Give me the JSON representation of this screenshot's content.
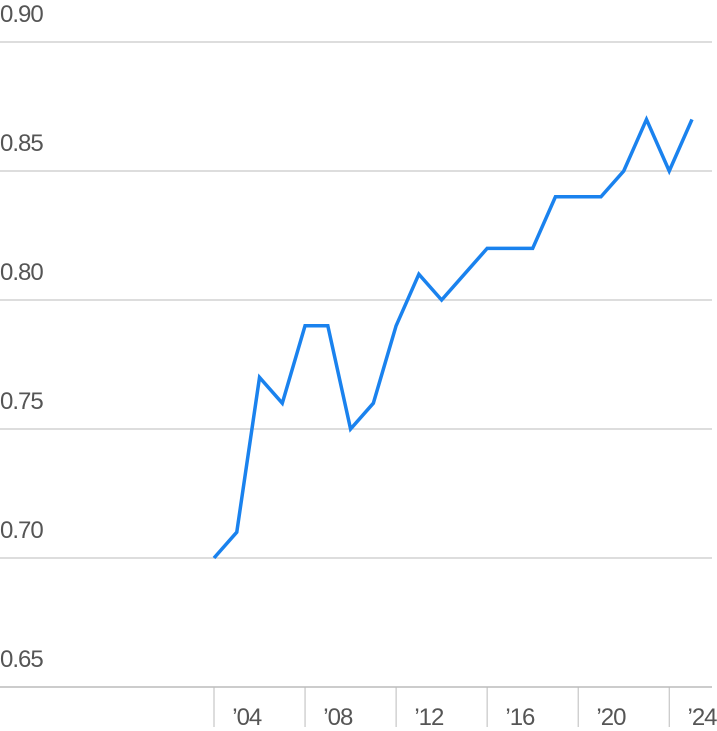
{
  "chart_data": {
    "type": "line",
    "x": [
      2003,
      2004,
      2005,
      2006,
      2007,
      2008,
      2009,
      2010,
      2011,
      2012,
      2013,
      2014,
      2015,
      2016,
      2017,
      2018,
      2019,
      2020,
      2021,
      2022,
      2023,
      2024
    ],
    "series": [
      {
        "color": "#1a82ee",
        "values": [
          0.7,
          0.71,
          0.77,
          0.76,
          0.79,
          0.79,
          0.75,
          0.76,
          0.79,
          0.81,
          0.8,
          0.81,
          0.82,
          0.82,
          0.82,
          0.84,
          0.84,
          0.84,
          0.85,
          0.87,
          0.85,
          0.87
        ]
      }
    ],
    "xlim": [
      2003,
      2024
    ],
    "xticks": [
      {
        "value": 2004,
        "label": "’04"
      },
      {
        "value": 2008,
        "label": "’08"
      },
      {
        "value": 2012,
        "label": "’12"
      },
      {
        "value": 2016,
        "label": "’16"
      },
      {
        "value": 2020,
        "label": "’20"
      },
      {
        "value": 2024,
        "label": "’24"
      }
    ],
    "ylim": [
      0.65,
      0.9
    ],
    "yticks": [
      {
        "value": 0.65,
        "label": "0.65"
      },
      {
        "value": 0.7,
        "label": "0.70"
      },
      {
        "value": 0.75,
        "label": "0.75"
      },
      {
        "value": 0.8,
        "label": "0.80"
      },
      {
        "value": 0.85,
        "label": "0.85"
      },
      {
        "value": 0.9,
        "label": "0.90"
      }
    ],
    "grid": true
  }
}
